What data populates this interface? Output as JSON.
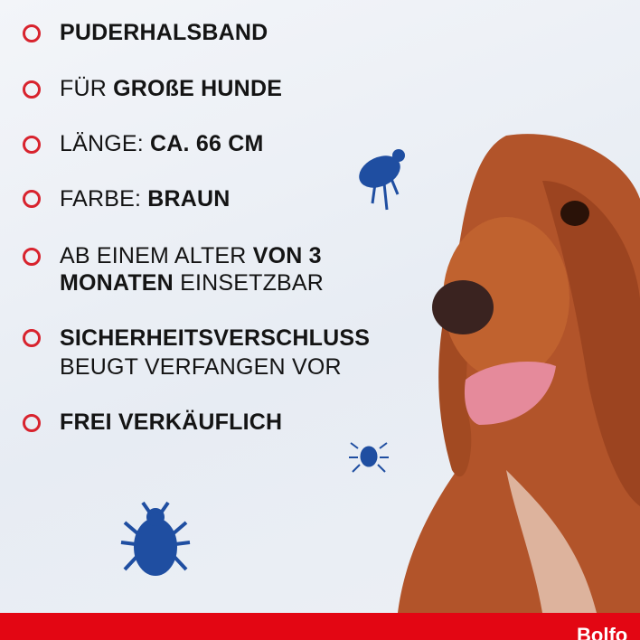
{
  "items": [
    {
      "lines": [
        [
          "PUDERHALSBAND"
        ]
      ]
    },
    {
      "lines": [
        [
          "FÜR ",
          "GROßE HUNDE"
        ]
      ]
    },
    {
      "lines": [
        [
          "LÄNGE: ",
          "CA. 66 CM"
        ]
      ]
    },
    {
      "lines": [
        [
          "FARBE: ",
          "BRAUN"
        ]
      ]
    },
    {
      "lines": [
        [
          "AB EINEM ALTER ",
          "VON 3"
        ],
        [
          "MONATEN",
          " EINSETZBAR"
        ]
      ]
    },
    {
      "lines": [
        [
          "SICHERHEITSVERSCHLUSS"
        ],
        [
          "BEUGT VERFANGEN VOR"
        ]
      ]
    },
    {
      "lines": [
        [
          "FREI VERKÄUFLICH"
        ]
      ]
    }
  ],
  "footer": {
    "brand": "Bolfo"
  }
}
